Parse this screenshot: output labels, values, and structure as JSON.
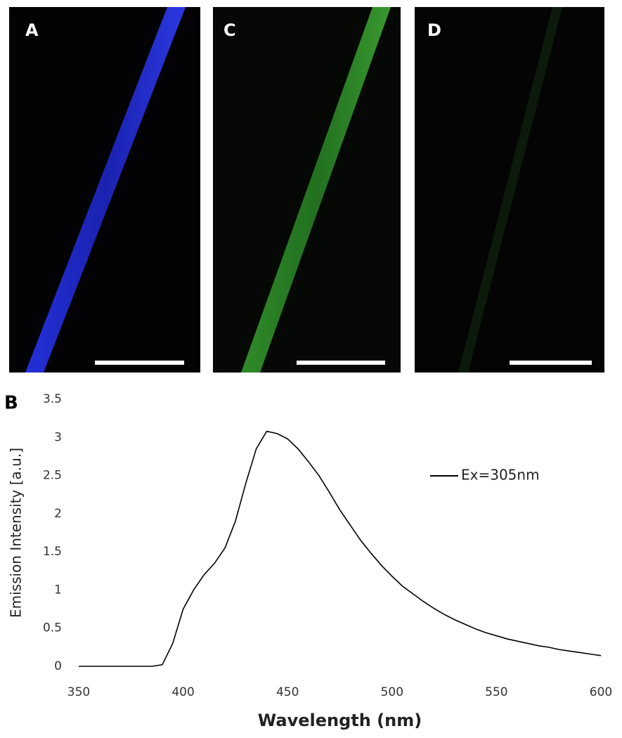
{
  "panels": [
    {
      "label": "A"
    },
    {
      "label": "C"
    },
    {
      "label": "D"
    }
  ],
  "chart_label": "B",
  "chart_data": {
    "type": "line",
    "x_label": "Wavelength (nm)",
    "y_label": "Emission Intensity  [a.u.]",
    "x": [
      350,
      355,
      360,
      365,
      370,
      375,
      380,
      385,
      390,
      395,
      400,
      405,
      410,
      415,
      420,
      425,
      430,
      435,
      440,
      445,
      450,
      455,
      460,
      465,
      470,
      475,
      480,
      485,
      490,
      495,
      500,
      505,
      510,
      515,
      520,
      525,
      530,
      535,
      540,
      545,
      550,
      555,
      560,
      565,
      570,
      575,
      580,
      585,
      590,
      595,
      600
    ],
    "series": [
      {
        "name": "Ex=305nm",
        "color": "#000000",
        "values": [
          0,
          0,
          0,
          0,
          0,
          0,
          0,
          0,
          0.02,
          0.3,
          0.75,
          1.0,
          1.2,
          1.35,
          1.55,
          1.9,
          2.4,
          2.85,
          3.08,
          3.05,
          2.98,
          2.85,
          2.68,
          2.5,
          2.28,
          2.05,
          1.85,
          1.65,
          1.48,
          1.32,
          1.18,
          1.05,
          0.95,
          0.85,
          0.76,
          0.68,
          0.61,
          0.55,
          0.49,
          0.44,
          0.4,
          0.36,
          0.33,
          0.3,
          0.27,
          0.25,
          0.22,
          0.2,
          0.18,
          0.16,
          0.14
        ]
      }
    ],
    "xlim": [
      350,
      600
    ],
    "xticks": [
      350,
      400,
      450,
      500,
      550,
      600
    ],
    "ylim": [
      0,
      3.5
    ],
    "yticks": [
      0,
      0.5,
      1,
      1.5,
      2,
      2.5,
      3,
      3.5
    ],
    "grid": false,
    "legend": "right"
  }
}
